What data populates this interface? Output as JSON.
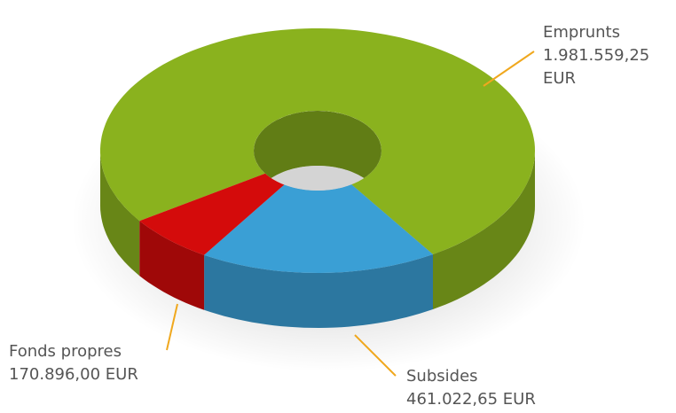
{
  "chart_data": {
    "type": "donut3d",
    "categories": [
      "Emprunts",
      "Subsides",
      "Fonds propres"
    ],
    "values": [
      1981559.25,
      461022.65,
      170896.0
    ],
    "value_labels": [
      "1.981.559,25 EUR",
      "461.022,65 EUR",
      "170.896,00 EUR"
    ],
    "colors": [
      "#8ab21e",
      "#3a9fd5",
      "#d40b0b"
    ]
  }
}
